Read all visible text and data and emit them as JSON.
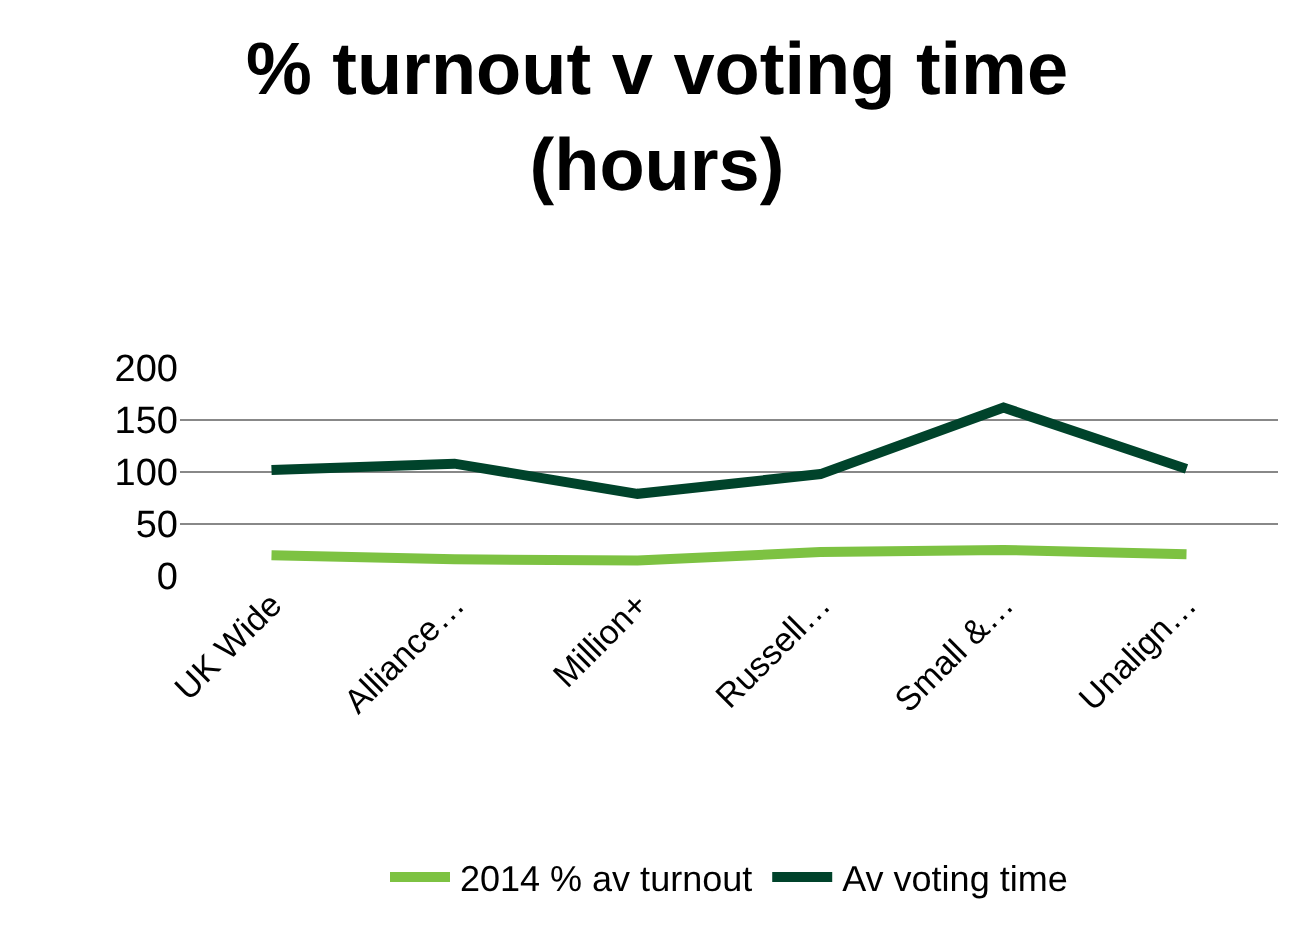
{
  "chart_data": {
    "type": "line",
    "title": "% turnout v voting time (hours)",
    "categories": [
      "UK Wide",
      "Alliance…",
      "Million+",
      "Russell…",
      "Small &…",
      "Unalign…"
    ],
    "series": [
      {
        "name": "2014 % av turnout",
        "color": "#7dc242",
        "values": [
          20,
          16,
          15,
          23,
          25,
          21
        ]
      },
      {
        "name": "Av voting time",
        "color": "#00432b",
        "values": [
          102,
          108,
          79,
          98,
          162,
          103
        ]
      }
    ],
    "ylim": [
      0,
      200
    ],
    "yticks": [
      0,
      50,
      100,
      150,
      200
    ],
    "grid": "y",
    "legend": "bottom",
    "marker": "none",
    "line_style": "solid"
  }
}
